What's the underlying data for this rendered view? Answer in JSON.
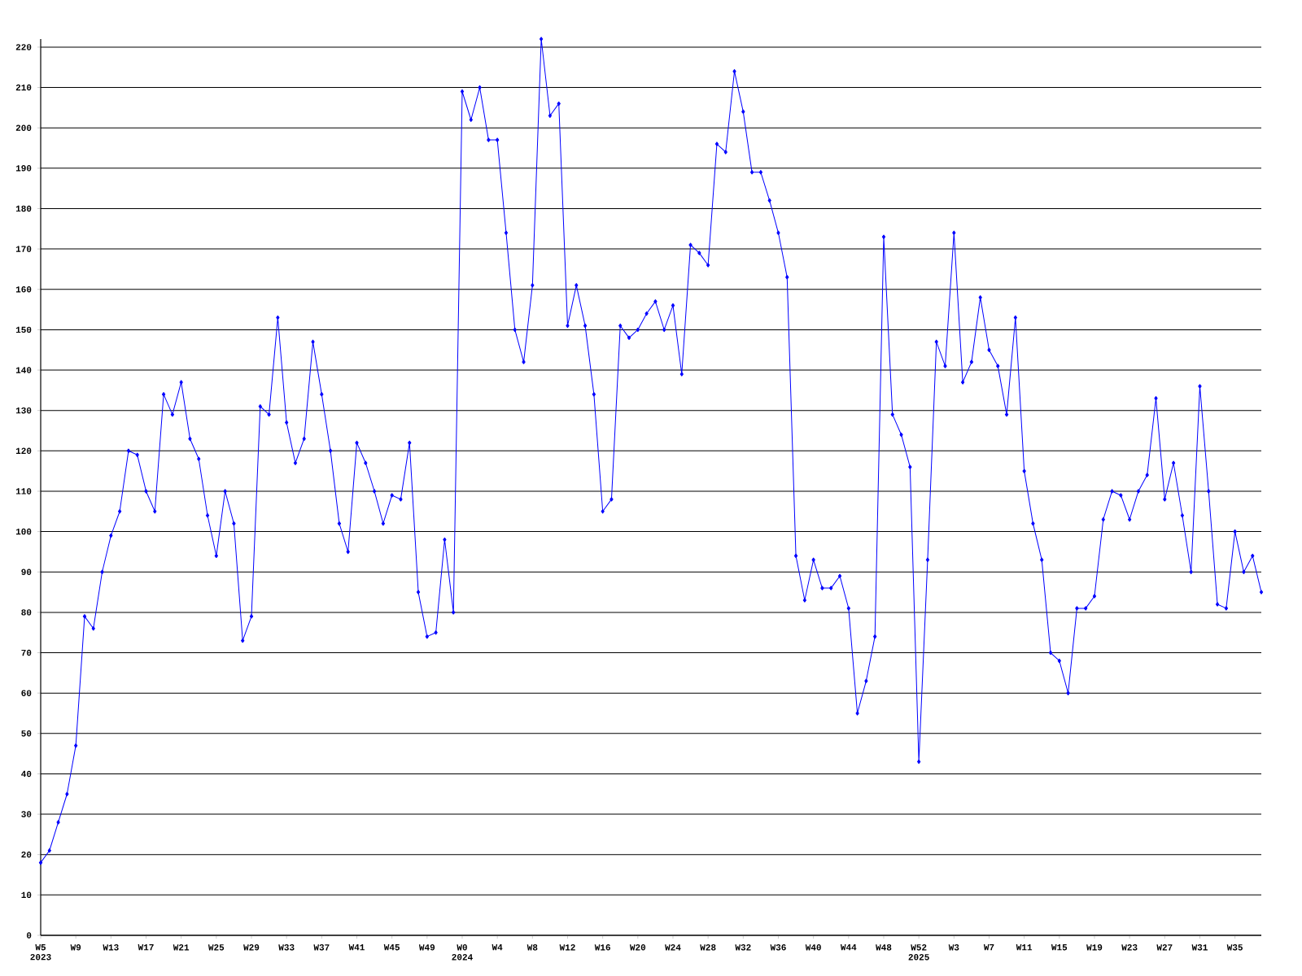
{
  "chart_data": {
    "type": "line",
    "categories": [
      "W5 2023",
      null,
      null,
      null,
      "W9",
      null,
      null,
      null,
      "W13",
      null,
      null,
      null,
      "W17",
      null,
      null,
      null,
      "W21",
      null,
      null,
      null,
      "W25",
      null,
      null,
      null,
      "W29",
      null,
      null,
      null,
      "W33",
      null,
      null,
      null,
      "W37",
      null,
      null,
      null,
      "W41",
      null,
      null,
      null,
      "W45",
      null,
      null,
      null,
      "W49",
      null,
      null,
      null,
      "W0 2024",
      null,
      null,
      null,
      "W4",
      null,
      null,
      null,
      "W8",
      null,
      null,
      null,
      "W12",
      null,
      null,
      null,
      "W16",
      null,
      null,
      null,
      "W20",
      null,
      null,
      null,
      "W24",
      null,
      null,
      null,
      "W28",
      null,
      null,
      null,
      "W32",
      null,
      null,
      null,
      "W36",
      null,
      null,
      null,
      "W40",
      null,
      null,
      null,
      "W44",
      null,
      null,
      null,
      "W48",
      null,
      null,
      null,
      "W52 2025",
      null,
      null,
      null,
      "W3",
      null,
      null,
      null,
      "W7",
      null,
      null,
      null,
      "W11",
      null,
      null,
      null,
      "W15",
      null,
      null,
      null,
      "W19",
      null,
      null,
      null,
      "W23",
      null,
      null,
      null,
      "W27",
      null,
      null,
      null,
      "W31",
      null,
      null,
      null,
      "W35",
      null,
      null,
      null
    ],
    "series": [
      {
        "color": "#0000ff",
        "values": [
          18,
          21,
          28,
          35,
          47,
          79,
          76,
          90,
          99,
          105,
          120,
          119,
          110,
          105,
          134,
          129,
          137,
          123,
          118,
          104,
          94,
          110,
          102,
          73,
          79,
          131,
          129,
          153,
          127,
          117,
          123,
          147,
          134,
          120,
          102,
          95,
          122,
          117,
          110,
          102,
          109,
          108,
          122,
          85,
          74,
          75,
          98,
          80,
          209,
          202,
          210,
          197,
          197,
          174,
          150,
          142,
          161,
          222,
          203,
          206,
          151,
          161,
          151,
          134,
          105,
          108,
          151,
          148,
          150,
          154,
          157,
          150,
          156,
          139,
          171,
          169,
          166,
          196,
          194,
          214,
          204,
          189,
          189,
          182,
          174,
          163,
          94,
          83,
          93,
          86,
          86,
          89,
          81,
          55,
          63,
          74,
          173,
          129,
          124,
          116,
          43,
          93,
          147,
          141,
          174,
          137,
          142,
          158,
          145,
          141,
          129,
          153,
          115,
          102,
          93,
          70,
          68,
          60,
          81,
          81,
          84,
          103,
          110,
          109,
          103,
          110,
          114,
          133,
          108,
          117,
          104,
          90,
          136,
          110,
          82,
          81,
          100,
          90,
          94,
          85
        ]
      }
    ],
    "ylim": [
      0,
      222
    ],
    "yticks": [
      0,
      10,
      20,
      30,
      40,
      50,
      60,
      70,
      80,
      90,
      100,
      110,
      120,
      130,
      140,
      150,
      160,
      170,
      180,
      190,
      200,
      210,
      220
    ],
    "grid": "y",
    "marker": "diamond",
    "line_style": "solid"
  }
}
